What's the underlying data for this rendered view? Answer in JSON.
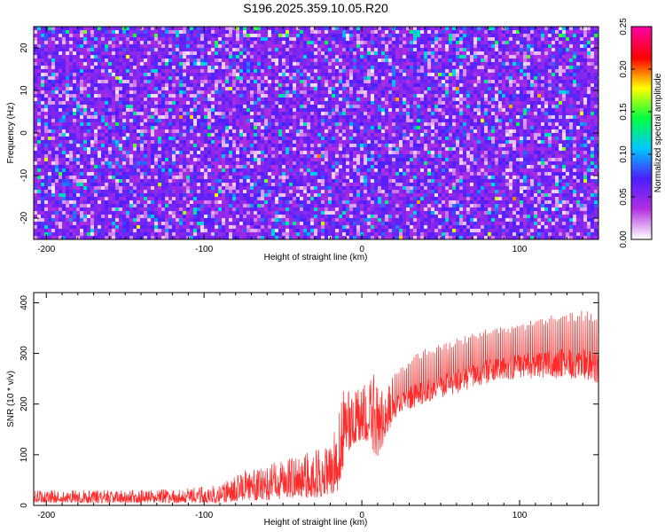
{
  "chart_data": [
    {
      "type": "heatmap",
      "title": "S196.2025.359.10.05.R20",
      "xlabel": "Height of straight line (km)",
      "ylabel": "Frequency (Hz)",
      "xlim": [
        -208,
        150
      ],
      "ylim": [
        -25,
        25
      ],
      "x_ticks": [
        -200,
        -100,
        0,
        100
      ],
      "y_ticks": [
        20,
        10,
        0,
        -10,
        -20
      ],
      "colorbar": {
        "label": "Normalized spectral amplitude",
        "range": [
          0,
          0.25
        ],
        "ticks": [
          0.0,
          0.05,
          0.1,
          0.15,
          0.2,
          0.25
        ],
        "tick_labels": [
          "0.00",
          "0.05",
          "0.10",
          "0.15",
          "0.20",
          "0.25"
        ],
        "colors": [
          "#ffffff",
          "#b22ee0",
          "#4b1eff",
          "#00c8ff",
          "#00ff40",
          "#ffff00",
          "#ff0000",
          "#ff00a0"
        ]
      },
      "description_values": {
        "typical_amplitude": [
          0.02,
          0.09
        ],
        "max_amplitude": 0.2
      }
    },
    {
      "type": "line",
      "xlabel": "Height of straight line (km)",
      "ylabel": "SNR (10 * v/v)",
      "xlim": [
        -208,
        150
      ],
      "ylim": [
        0,
        420
      ],
      "x_ticks": [
        -200,
        -100,
        0,
        100
      ],
      "y_ticks": [
        0,
        100,
        200,
        300,
        400
      ],
      "series": [
        {
          "name": "SNR",
          "color": "#ff2a2a",
          "envelope_x": [
            -208,
            -160,
            -120,
            -90,
            -75,
            -60,
            -45,
            -30,
            -20,
            -15,
            -10,
            -5,
            0,
            5,
            10,
            15,
            20,
            30,
            40,
            60,
            80,
            100,
            120,
            140,
            150
          ],
          "envelope_low": [
            5,
            5,
            5,
            5,
            10,
            10,
            15,
            15,
            20,
            30,
            100,
            120,
            130,
            120,
            90,
            130,
            170,
            190,
            200,
            220,
            240,
            250,
            250,
            250,
            240
          ],
          "envelope_high": [
            30,
            30,
            32,
            40,
            70,
            80,
            100,
            110,
            130,
            200,
            240,
            230,
            240,
            250,
            270,
            220,
            260,
            290,
            310,
            330,
            350,
            360,
            380,
            385,
            380
          ]
        }
      ]
    }
  ]
}
